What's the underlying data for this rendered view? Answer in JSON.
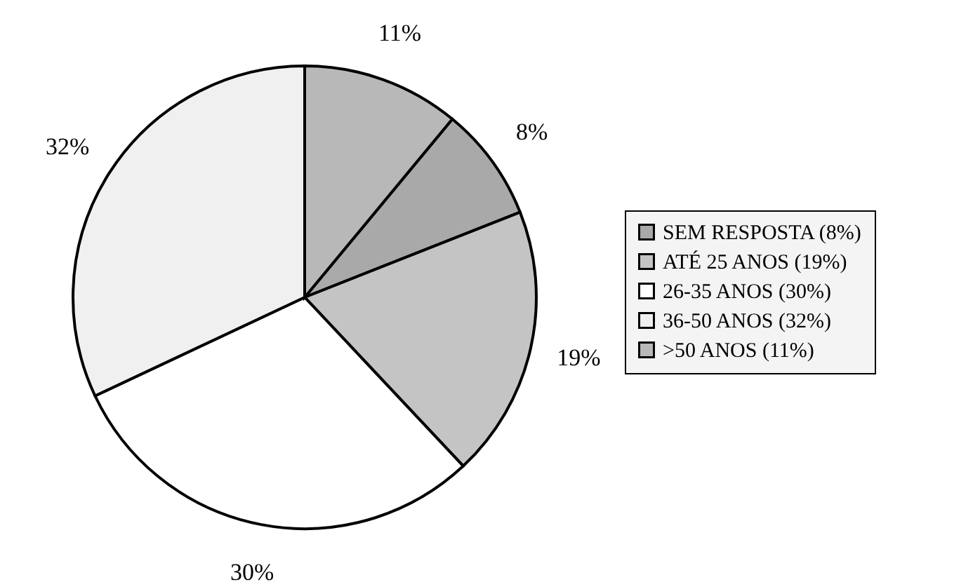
{
  "chart_data": {
    "type": "pie",
    "categories": [
      "SEM RESPOSTA (8%)",
      "ATÉ 25 ANOS (19%)",
      "26-35 ANOS (30%)",
      "36-50 ANOS (32%)",
      ">50 ANOS (11%)"
    ],
    "values": [
      8,
      19,
      30,
      32,
      11
    ],
    "colors": [
      "#a9a9a9",
      "#c4c4c4",
      "#ffffff",
      "#f0f0f0",
      "#b8b8b8"
    ],
    "value_labels": [
      "8%",
      "19%",
      "30%",
      "32%",
      "11%"
    ],
    "legend": "right"
  }
}
